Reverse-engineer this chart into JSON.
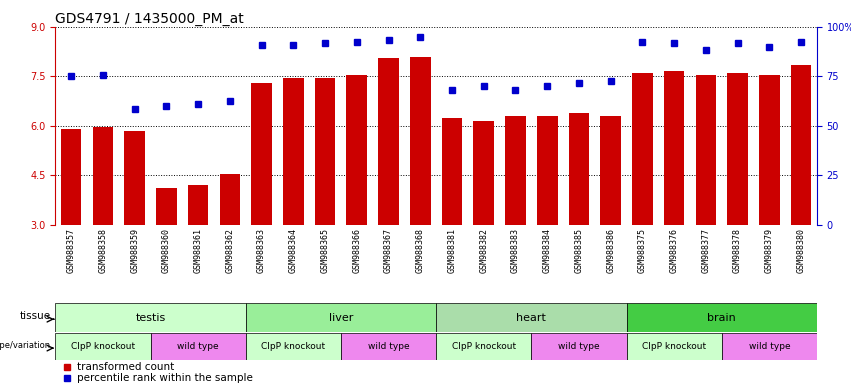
{
  "title": "GDS4791 / 1435000_PM_at",
  "samples": [
    "GSM988357",
    "GSM988358",
    "GSM988359",
    "GSM988360",
    "GSM988361",
    "GSM988362",
    "GSM988363",
    "GSM988364",
    "GSM988365",
    "GSM988366",
    "GSM988367",
    "GSM988368",
    "GSM988381",
    "GSM988382",
    "GSM988383",
    "GSM988384",
    "GSM988385",
    "GSM988386",
    "GSM988375",
    "GSM988376",
    "GSM988377",
    "GSM988378",
    "GSM988379",
    "GSM988380"
  ],
  "bar_values": [
    5.9,
    5.95,
    5.85,
    4.1,
    4.2,
    4.55,
    7.3,
    7.45,
    7.45,
    7.55,
    8.05,
    8.1,
    6.25,
    6.15,
    6.3,
    6.3,
    6.4,
    6.3,
    7.6,
    7.65,
    7.55,
    7.6,
    7.55,
    7.85
  ],
  "percentile_values": [
    7.5,
    7.55,
    6.5,
    6.6,
    6.65,
    6.75,
    8.45,
    8.45,
    8.5,
    8.55,
    8.6,
    8.7,
    7.1,
    7.2,
    7.1,
    7.2,
    7.3,
    7.35,
    8.55,
    8.5,
    8.3,
    8.5,
    8.4,
    8.55
  ],
  "ylim_left": [
    3,
    9
  ],
  "yticks_left": [
    3,
    4.5,
    6,
    7.5,
    9
  ],
  "yticks_right": [
    0,
    25,
    50,
    75,
    100
  ],
  "bar_color": "#CC0000",
  "dot_color": "#0000CC",
  "bar_bottom": 3,
  "tissue_groups": [
    {
      "label": "testis",
      "start": 0,
      "end": 6,
      "color": "#CCFFCC"
    },
    {
      "label": "liver",
      "start": 6,
      "end": 12,
      "color": "#99EE99"
    },
    {
      "label": "heart",
      "start": 12,
      "end": 18,
      "color": "#AADDAA"
    },
    {
      "label": "brain",
      "start": 18,
      "end": 24,
      "color": "#44CC44"
    }
  ],
  "genotype_groups": [
    {
      "label": "ClpP knockout",
      "start": 0,
      "end": 3,
      "color": "#CCFFCC"
    },
    {
      "label": "wild type",
      "start": 3,
      "end": 6,
      "color": "#EE88EE"
    },
    {
      "label": "ClpP knockout",
      "start": 6,
      "end": 9,
      "color": "#CCFFCC"
    },
    {
      "label": "wild type",
      "start": 9,
      "end": 12,
      "color": "#EE88EE"
    },
    {
      "label": "ClpP knockout",
      "start": 12,
      "end": 15,
      "color": "#CCFFCC"
    },
    {
      "label": "wild type",
      "start": 15,
      "end": 18,
      "color": "#EE88EE"
    },
    {
      "label": "ClpP knockout",
      "start": 18,
      "end": 21,
      "color": "#CCFFCC"
    },
    {
      "label": "wild type",
      "start": 21,
      "end": 24,
      "color": "#EE88EE"
    }
  ],
  "bg_color": "#FFFFFF",
  "title_fontsize": 10,
  "tick_fontsize": 7,
  "xtick_fontsize": 6,
  "tick_color_left": "#CC0000",
  "tick_color_right": "#0000CC",
  "legend_items": [
    {
      "label": "transformed count",
      "color": "#CC0000"
    },
    {
      "label": "percentile rank within the sample",
      "color": "#0000CC"
    }
  ]
}
